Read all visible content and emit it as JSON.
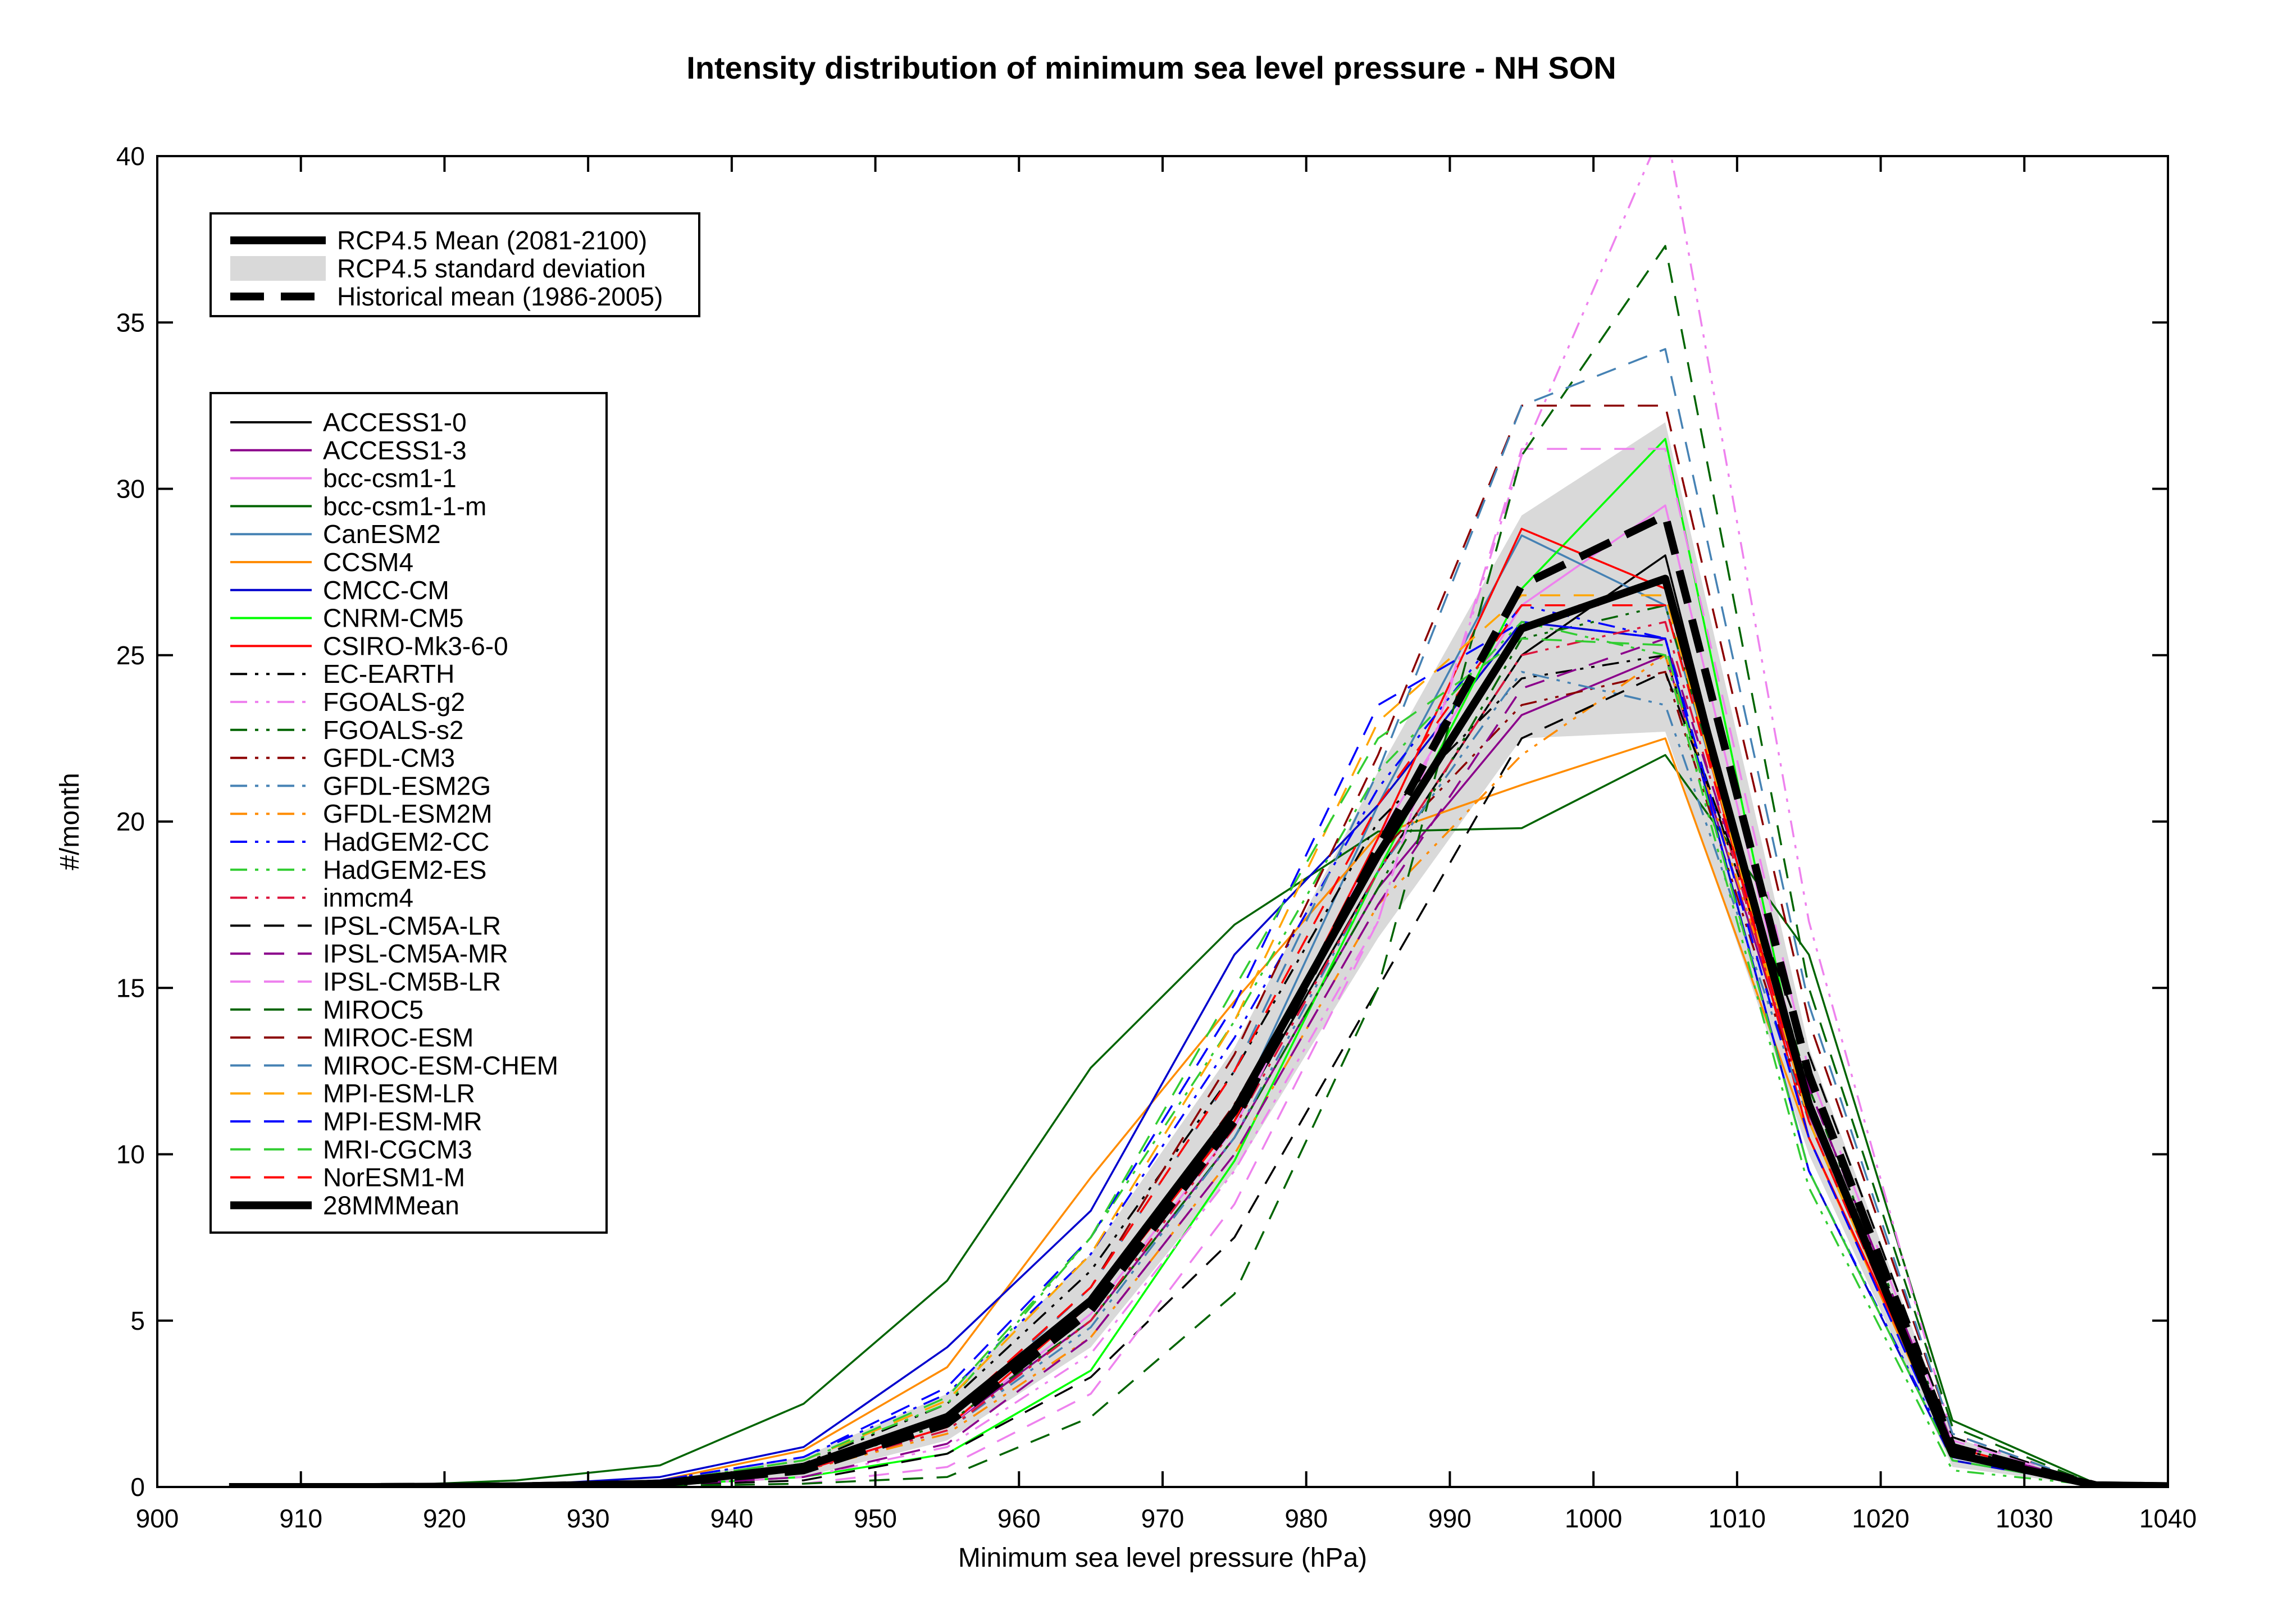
{
  "chart_data": {
    "type": "line",
    "title": "Intensity distribution of minimum sea level pressure - NH SON",
    "xlabel": "Minimum sea level pressure (hPa)",
    "ylabel": "#/month",
    "xlim": [
      900,
      1040
    ],
    "ylim": [
      0,
      40
    ],
    "xticks": [
      900,
      910,
      920,
      930,
      940,
      950,
      960,
      970,
      980,
      990,
      1000,
      1010,
      1020,
      1030,
      1040
    ],
    "yticks": [
      0,
      5,
      10,
      15,
      20,
      25,
      30,
      35,
      40
    ],
    "x": [
      905,
      915,
      925,
      935,
      945,
      955,
      965,
      975,
      985,
      995,
      1005,
      1015,
      1025,
      1035,
      1045
    ],
    "grid": false,
    "legend_summary": {
      "placement": "top-left",
      "entries": [
        {
          "label": "RCP4.5 Mean (2081-2100)",
          "style": "thick-solid",
          "color": "#000000"
        },
        {
          "label": "RCP4.5 standard deviation",
          "style": "band",
          "color": "#d9d9d9"
        },
        {
          "label": "Historical mean (1986-2005)",
          "style": "thick-dashed",
          "color": "#000000"
        }
      ]
    },
    "rcp_mean": [
      0,
      0,
      0.02,
      0.1,
      0.6,
      2.1,
      5.6,
      11.3,
      19.0,
      25.8,
      27.3,
      11.5,
      1.0,
      0.05,
      0
    ],
    "std_band": {
      "lower": [
        0,
        0,
        0,
        0.05,
        0.3,
        1.4,
        4.2,
        9.5,
        16.5,
        22.5,
        22.7,
        10.0,
        0.6,
        0.02,
        0
      ],
      "upper": [
        0,
        0,
        0.05,
        0.2,
        0.9,
        2.8,
        7.0,
        13.2,
        21.5,
        29.2,
        32.0,
        13.2,
        1.5,
        0.1,
        0
      ]
    },
    "historical_mean": [
      0,
      0,
      0.02,
      0.1,
      0.5,
      1.9,
      5.3,
      11.0,
      19.2,
      27.1,
      29.2,
      12.4,
      1.2,
      0.05,
      0
    ],
    "legend_models_placement": "left",
    "series": [
      {
        "name": "ACCESS1-0",
        "color": "#000000",
        "dash": "solid",
        "values": [
          0,
          0,
          0.02,
          0.1,
          0.7,
          2.2,
          5.6,
          11.0,
          18.5,
          25.0,
          28.0,
          11.0,
          1.0,
          0.05,
          0
        ]
      },
      {
        "name": "ACCESS1-3",
        "color": "#8b008b",
        "dash": "solid",
        "values": [
          0,
          0,
          0.02,
          0.1,
          0.5,
          1.8,
          5.0,
          10.5,
          18.0,
          23.2,
          25.0,
          11.2,
          1.1,
          0.05,
          0
        ]
      },
      {
        "name": "bcc-csm1-1",
        "color": "#ee82ee",
        "dash": "solid",
        "values": [
          0,
          0,
          0.02,
          0.1,
          0.5,
          1.8,
          5.2,
          10.8,
          19.5,
          26.5,
          29.5,
          11.5,
          1.0,
          0.05,
          0
        ]
      },
      {
        "name": "bcc-csm1-1-m",
        "color": "#006400",
        "dash": "solid",
        "values": [
          0,
          0.02,
          0.2,
          0.65,
          2.5,
          6.2,
          12.6,
          16.9,
          19.7,
          19.8,
          22.0,
          16.0,
          2.0,
          0.1,
          0
        ]
      },
      {
        "name": "CanESM2",
        "color": "#4682b4",
        "dash": "solid",
        "values": [
          0,
          0,
          0.02,
          0.1,
          0.6,
          2.0,
          5.5,
          11.2,
          20.5,
          28.6,
          26.5,
          11.5,
          1.0,
          0.05,
          0
        ]
      },
      {
        "name": "CCSM4",
        "color": "#ff8c00",
        "dash": "solid",
        "values": [
          0,
          0,
          0.03,
          0.2,
          1.1,
          3.6,
          9.3,
          14.6,
          19.6,
          21.1,
          22.5,
          10.5,
          1.0,
          0.05,
          0
        ]
      },
      {
        "name": "CMCC-CM",
        "color": "#0000cd",
        "dash": "solid",
        "values": [
          0,
          0,
          0.04,
          0.3,
          1.2,
          4.2,
          8.3,
          16.0,
          20.5,
          26.0,
          25.5,
          9.5,
          0.8,
          0.05,
          0
        ]
      },
      {
        "name": "CNRM-CM5",
        "color": "#00ff00",
        "dash": "solid",
        "values": [
          0,
          0,
          0.01,
          0.05,
          0.3,
          1.0,
          3.5,
          9.8,
          18.5,
          27.0,
          31.5,
          11.0,
          1.0,
          0.05,
          0
        ]
      },
      {
        "name": "CSIRO-Mk3-6-0",
        "color": "#ff0000",
        "dash": "solid",
        "values": [
          0,
          0,
          0.02,
          0.1,
          0.5,
          1.8,
          5.5,
          11.0,
          19.5,
          28.8,
          27.0,
          10.5,
          1.2,
          0.05,
          0
        ]
      },
      {
        "name": "EC-EARTH",
        "color": "#000000",
        "dash": "dashdotdot",
        "values": [
          0,
          0,
          0.02,
          0.1,
          0.7,
          2.5,
          6.5,
          12.5,
          20.0,
          24.3,
          25.0,
          12.0,
          1.2,
          0.05,
          0
        ]
      },
      {
        "name": "FGOALS-g2",
        "color": "#ee82ee",
        "dash": "dashdotdot",
        "values": [
          0,
          0,
          0.01,
          0.05,
          0.3,
          1.2,
          4.0,
          9.5,
          17.0,
          31.0,
          41.0,
          17.0,
          1.5,
          0.05,
          0
        ]
      },
      {
        "name": "FGOALS-s2",
        "color": "#006400",
        "dash": "dashdotdot",
        "values": [
          0,
          0,
          0.02,
          0.1,
          0.6,
          1.9,
          5.0,
          10.5,
          18.0,
          25.5,
          26.5,
          12.0,
          1.3,
          0.05,
          0
        ]
      },
      {
        "name": "GFDL-CM3",
        "color": "#8b0000",
        "dash": "dashdotdot",
        "values": [
          0,
          0,
          0.02,
          0.1,
          0.6,
          2.0,
          5.5,
          11.5,
          19.0,
          23.5,
          24.5,
          11.0,
          1.1,
          0.05,
          0
        ]
      },
      {
        "name": "GFDL-ESM2G",
        "color": "#4682b4",
        "dash": "dashdotdot",
        "values": [
          0,
          0,
          0.02,
          0.1,
          0.5,
          1.7,
          4.8,
          10.5,
          18.5,
          24.5,
          23.5,
          11.0,
          1.0,
          0.05,
          0
        ]
      },
      {
        "name": "GFDL-ESM2M",
        "color": "#ff8c00",
        "dash": "dashdotdot",
        "values": [
          0,
          0,
          0.02,
          0.1,
          0.5,
          1.6,
          4.5,
          10.0,
          17.5,
          22.0,
          25.0,
          11.5,
          1.0,
          0.05,
          0
        ]
      },
      {
        "name": "HadGEM2-CC",
        "color": "#0000ff",
        "dash": "dashdotdot",
        "values": [
          0,
          0,
          0.03,
          0.2,
          0.9,
          2.8,
          7.0,
          13.5,
          21.0,
          26.5,
          25.5,
          9.5,
          0.9,
          0.05,
          0
        ]
      },
      {
        "name": "HadGEM2-ES",
        "color": "#32cd32",
        "dash": "dashdotdot",
        "values": [
          0,
          0,
          0.02,
          0.15,
          0.8,
          2.5,
          7.5,
          14.0,
          21.5,
          26.0,
          25.0,
          9.0,
          0.5,
          0.05,
          0
        ]
      },
      {
        "name": "inmcm4",
        "color": "#dc143c",
        "dash": "dashdotdot",
        "values": [
          0,
          0,
          0.02,
          0.1,
          0.5,
          1.7,
          5.0,
          10.8,
          18.5,
          25.0,
          26.0,
          11.0,
          1.0,
          0.05,
          0
        ]
      },
      {
        "name": "IPSL-CM5A-LR",
        "color": "#000000",
        "dash": "dashed",
        "values": [
          0,
          0,
          0.01,
          0.05,
          0.2,
          1.0,
          3.3,
          7.5,
          15.0,
          22.5,
          24.5,
          13.0,
          1.5,
          0.05,
          0
        ]
      },
      {
        "name": "IPSL-CM5A-MR",
        "color": "#8b008b",
        "dash": "dashed",
        "values": [
          0,
          0,
          0.01,
          0.05,
          0.3,
          1.3,
          4.5,
          10.0,
          17.5,
          24.0,
          25.5,
          12.0,
          1.3,
          0.05,
          0
        ]
      },
      {
        "name": "IPSL-CM5B-LR",
        "color": "#ee82ee",
        "dash": "dashed",
        "values": [
          0,
          0,
          0.01,
          0.03,
          0.1,
          0.6,
          2.8,
          8.5,
          17.0,
          31.2,
          31.2,
          12.5,
          1.4,
          0.05,
          0
        ]
      },
      {
        "name": "MIROC5",
        "color": "#006400",
        "dash": "dashed",
        "values": [
          0,
          0,
          0.01,
          0.03,
          0.1,
          0.3,
          2.1,
          5.8,
          15.0,
          31.0,
          37.3,
          15.0,
          1.8,
          0.05,
          0
        ]
      },
      {
        "name": "MIROC-ESM",
        "color": "#8b0000",
        "dash": "dashed",
        "values": [
          0,
          0,
          0.02,
          0.1,
          0.6,
          2.0,
          6.0,
          13.0,
          22.0,
          32.5,
          32.5,
          14.0,
          1.6,
          0.05,
          0
        ]
      },
      {
        "name": "MIROC-ESM-CHEM",
        "color": "#4682b4",
        "dash": "dashed",
        "values": [
          0,
          0,
          0.02,
          0.1,
          0.6,
          2.0,
          6.0,
          12.5,
          21.5,
          32.5,
          34.2,
          14.5,
          1.6,
          0.05,
          0
        ]
      },
      {
        "name": "MPI-ESM-LR",
        "color": "#ffa500",
        "dash": "dashed",
        "values": [
          0,
          0,
          0.02,
          0.15,
          0.8,
          2.6,
          7.0,
          14.0,
          23.0,
          26.8,
          26.8,
          11.0,
          1.0,
          0.05,
          0
        ]
      },
      {
        "name": "MPI-ESM-MR",
        "color": "#0000ff",
        "dash": "dashed",
        "values": [
          0,
          0,
          0.03,
          0.2,
          0.9,
          3.0,
          7.5,
          14.5,
          23.5,
          26.0,
          25.5,
          10.5,
          0.9,
          0.05,
          0
        ]
      },
      {
        "name": "MRI-CGCM3",
        "color": "#32cd32",
        "dash": "dashed",
        "values": [
          0,
          0,
          0.02,
          0.15,
          0.8,
          2.7,
          7.5,
          15.0,
          22.5,
          25.5,
          25.3,
          9.5,
          0.8,
          0.05,
          0
        ]
      },
      {
        "name": "NorESM1-M",
        "color": "#ff0000",
        "dash": "dashed",
        "values": [
          0,
          0,
          0.02,
          0.1,
          0.6,
          2.1,
          6.0,
          12.5,
          20.5,
          26.5,
          26.5,
          11.0,
          1.0,
          0.05,
          0
        ]
      },
      {
        "name": "28MMMean",
        "color": "#000000",
        "dash": "thick-solid",
        "values": [
          0,
          0,
          0.02,
          0.1,
          0.6,
          2.1,
          5.6,
          11.3,
          19.0,
          25.8,
          27.3,
          11.5,
          1.0,
          0.05,
          0
        ]
      }
    ]
  }
}
